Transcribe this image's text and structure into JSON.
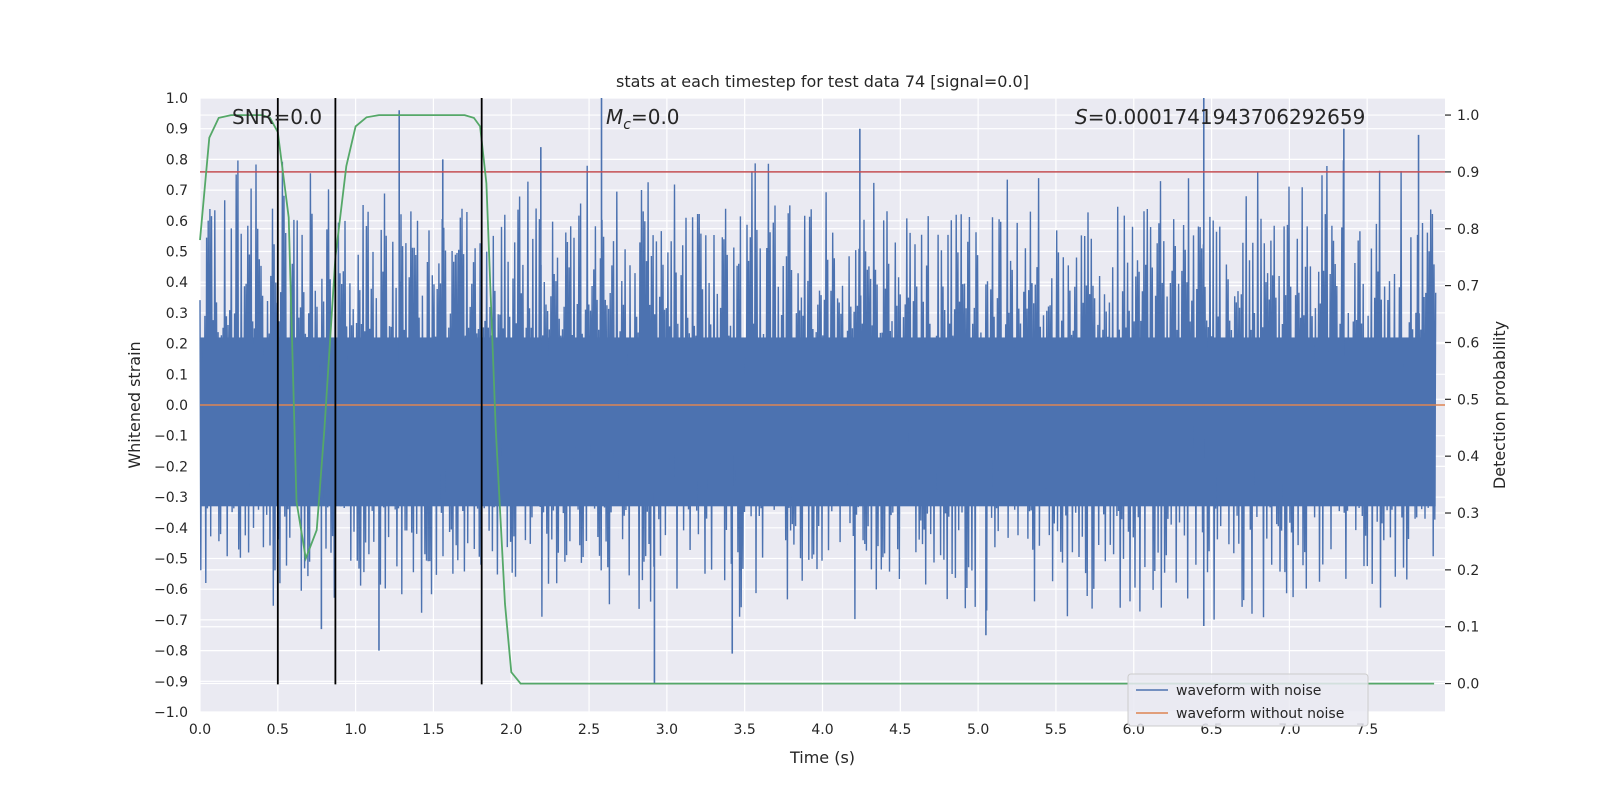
{
  "chart_data": {
    "type": "line",
    "title": "stats at each timestep for test data 74 [signal=0.0]",
    "xlabel": "Time (s)",
    "ylabel": "Whitened strain",
    "y2label": "Detection probability",
    "xlim": [
      0.0,
      8.0
    ],
    "ylim": [
      -1.0,
      1.0
    ],
    "y2lim": [
      -0.05,
      1.03
    ],
    "grid": true,
    "x_ticks": [
      "0.0",
      "0.5",
      "1.0",
      "1.5",
      "2.0",
      "2.5",
      "3.0",
      "3.5",
      "4.0",
      "4.5",
      "5.0",
      "5.5",
      "6.0",
      "6.5",
      "7.0",
      "7.5"
    ],
    "y_ticks": [
      "1.0",
      "0.9",
      "0.8",
      "0.7",
      "0.6",
      "0.5",
      "0.4",
      "0.3",
      "0.2",
      "0.1",
      "0.0",
      "−0.1",
      "−0.2",
      "−0.3",
      "−0.4",
      "−0.5",
      "−0.6",
      "−0.7",
      "−0.8",
      "−0.9",
      "−1.0"
    ],
    "y2_ticks": [
      "1.0",
      "0.9",
      "0.8",
      "0.7",
      "0.6",
      "0.5",
      "0.4",
      "0.3",
      "0.2",
      "0.1",
      "0.0"
    ],
    "annotations": {
      "snr": "SNR=0.0",
      "mc_symbol": "M",
      "mc_subscript": "c",
      "mc_value": "=0.0",
      "s_symbol": "S",
      "s_value": "=0.0001741943706292659"
    },
    "noise_band": {
      "upper_typical": 0.42,
      "lower_typical": -0.35,
      "peak_max": 1.0,
      "trough_min": -0.91
    },
    "noise_peaks": [
      {
        "x": 1.28,
        "y": 0.96
      },
      {
        "x": 2.19,
        "y": 0.84
      },
      {
        "x": 2.58,
        "y": 1.0
      },
      {
        "x": 4.24,
        "y": 0.9
      },
      {
        "x": 6.45,
        "y": 1.0
      },
      {
        "x": 7.35,
        "y": 0.9
      },
      {
        "x": 7.83,
        "y": 0.88
      },
      {
        "x": 1.56,
        "y": 0.8
      },
      {
        "x": 2.92,
        "y": -0.91
      },
      {
        "x": 3.42,
        "y": -0.81
      },
      {
        "x": 0.78,
        "y": -0.73
      },
      {
        "x": 1.15,
        "y": -0.8
      },
      {
        "x": 5.05,
        "y": -0.75
      },
      {
        "x": 6.45,
        "y": -0.72
      }
    ],
    "series": [
      {
        "name": "waveform with noise",
        "color": "#4c72b0",
        "kind": "noise"
      },
      {
        "name": "waveform without noise",
        "color": "#dd8452",
        "values": [
          0.0,
          0.0
        ],
        "x": [
          0.0,
          8.0
        ]
      },
      {
        "name": "detection probability",
        "color": "#55a868",
        "axis": "right",
        "in_legend": false,
        "x": [
          0.0,
          0.06,
          0.12,
          0.2,
          0.3,
          0.4,
          0.45,
          0.5,
          0.57,
          0.62,
          0.68,
          0.75,
          0.8,
          0.87,
          0.94,
          1.0,
          1.07,
          1.15,
          1.3,
          1.5,
          1.7,
          1.76,
          1.8,
          1.84,
          1.9,
          1.96,
          2.0,
          2.06,
          2.15,
          2.4,
          3.0,
          4.0,
          5.0,
          6.0,
          7.0,
          7.93
        ],
        "values": [
          0.78,
          0.96,
          0.995,
          1.0,
          1.0,
          1.0,
          0.995,
          0.97,
          0.82,
          0.32,
          0.22,
          0.27,
          0.45,
          0.75,
          0.91,
          0.98,
          0.996,
          1.0,
          1.0,
          1.0,
          1.0,
          0.995,
          0.98,
          0.88,
          0.45,
          0.14,
          0.02,
          0.0,
          0.0,
          0.0,
          0.0,
          0.0,
          0.0,
          0.0,
          0.0,
          0.0
        ]
      }
    ],
    "threshold": {
      "axis": "right",
      "value": 0.9,
      "color": "#c44e52"
    },
    "vlines": [
      0.5,
      0.87,
      1.81
    ],
    "vline_range": [
      -0.91,
      1.0
    ],
    "legend": {
      "location": "lower-right",
      "entries": [
        {
          "label": "waveform with noise",
          "color": "#4c72b0"
        },
        {
          "label": "waveform without noise",
          "color": "#dd8452"
        }
      ]
    },
    "colors": {
      "background": "#eaeaf2",
      "grid": "#ffffff",
      "text": "#262626",
      "vline": "#000000"
    }
  }
}
